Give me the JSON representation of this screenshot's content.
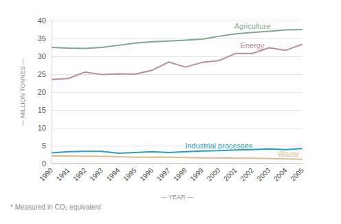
{
  "chart_data": {
    "type": "line",
    "x_label": "— YEAR —",
    "y_label": "— MILLION TONNES —",
    "annotations": [
      "* Measured in CO₂ equivalent"
    ],
    "categories": [
      "1990",
      "1991",
      "1992",
      "1993",
      "1994",
      "1995",
      "1996",
      "1997",
      "1998",
      "1999",
      "2000",
      "2001",
      "2002",
      "2003",
      "2004",
      "2005"
    ],
    "series": [
      {
        "name": "Agriculture",
        "color": "#7fa88e",
        "values": [
          32.5,
          32.3,
          32.2,
          32.5,
          33.1,
          33.7,
          34.1,
          34.3,
          34.5,
          34.8,
          35.6,
          36.3,
          36.7,
          37.0,
          37.4,
          37.5
        ]
      },
      {
        "name": "Energy",
        "color": "#bb8c9c",
        "values": [
          23.5,
          23.8,
          25.6,
          24.9,
          25.1,
          25.0,
          26.1,
          28.4,
          27.0,
          28.3,
          28.8,
          30.8,
          30.8,
          32.4,
          31.7,
          33.4
        ]
      },
      {
        "name": "Industrial processes",
        "color": "#2aa0b8",
        "values": [
          3.0,
          3.3,
          3.4,
          3.4,
          2.9,
          3.1,
          3.3,
          3.1,
          3.3,
          3.5,
          3.6,
          3.8,
          3.9,
          4.1,
          3.9,
          4.2
        ]
      },
      {
        "name": "Waste",
        "color": "#e2b98f",
        "values": [
          2.1,
          2.1,
          2.0,
          2.0,
          1.9,
          1.8,
          1.8,
          1.8,
          1.7,
          1.6,
          1.6,
          1.5,
          1.5,
          1.4,
          1.3,
          1.2
        ]
      }
    ],
    "ylim": [
      0,
      40
    ],
    "yticks": [
      0,
      5,
      10,
      15,
      20,
      25,
      30,
      35,
      40
    ],
    "grid": true
  }
}
